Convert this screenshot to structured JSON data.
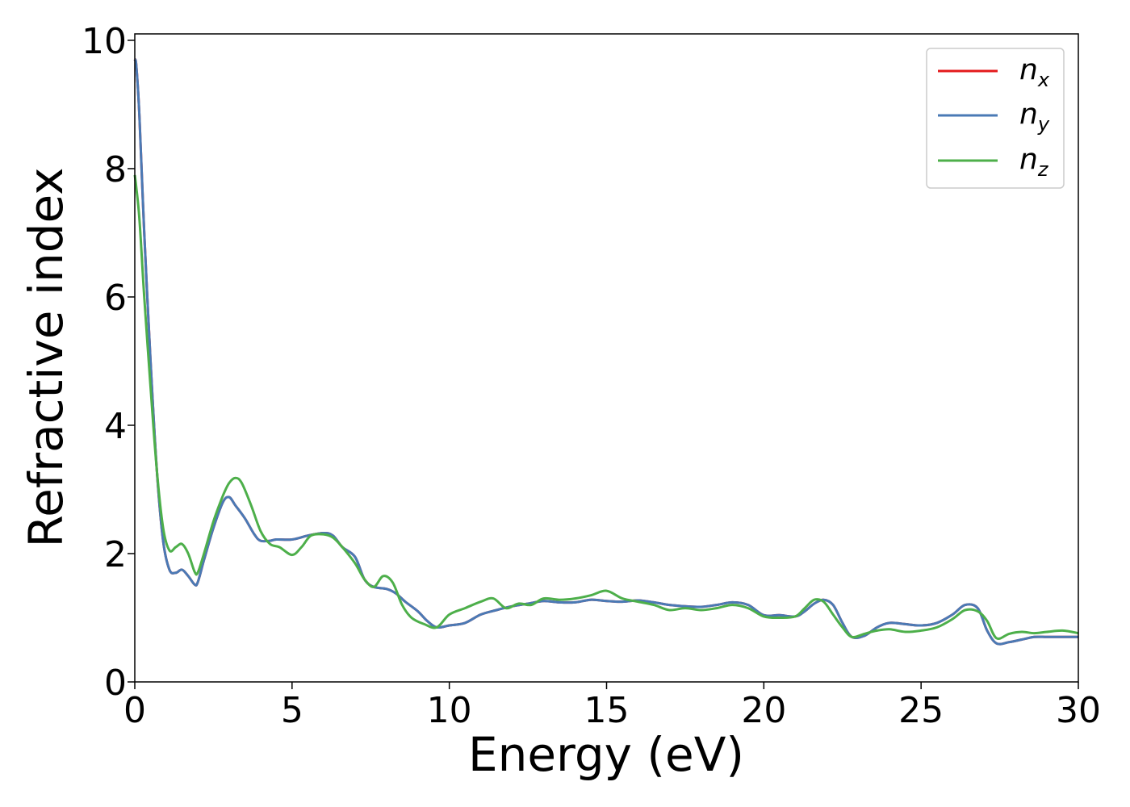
{
  "chart_data": {
    "type": "line",
    "title": "",
    "xlabel": "Energy (eV)",
    "ylabel": "Refractive index",
    "xlim": [
      0,
      30
    ],
    "ylim": [
      0,
      10.1
    ],
    "xticks": [
      "0",
      "5",
      "10",
      "15",
      "20",
      "25",
      "30"
    ],
    "yticks": [
      "0",
      "2",
      "4",
      "6",
      "8",
      "10"
    ],
    "grid": false,
    "legend_position": "top-right",
    "series": [
      {
        "name": "n",
        "sub": "x",
        "color": "#e41a1c",
        "x": [
          0,
          0.05,
          0.15,
          0.3,
          0.5,
          0.7,
          0.9,
          1.1,
          1.3,
          1.5,
          1.7,
          1.9,
          2.0,
          2.2,
          2.5,
          2.8,
          3.0,
          3.2,
          3.5,
          3.8,
          4.0,
          4.3,
          4.5,
          5.0,
          5.5,
          6.0,
          6.3,
          6.6,
          7.0,
          7.3,
          7.6,
          8.0,
          8.3,
          8.6,
          9.0,
          9.3,
          9.6,
          10.0,
          10.5,
          11.0,
          11.5,
          12.0,
          12.5,
          13.0,
          13.5,
          14.0,
          14.5,
          15.0,
          15.5,
          16.0,
          16.5,
          17.0,
          17.5,
          18.0,
          18.5,
          19.0,
          19.5,
          20.0,
          20.5,
          21.0,
          21.3,
          21.6,
          21.9,
          22.2,
          22.5,
          22.8,
          23.2,
          23.6,
          24.0,
          24.5,
          25.0,
          25.5,
          26.0,
          26.4,
          26.8,
          27.1,
          27.4,
          27.8,
          28.2,
          28.6,
          29.0,
          29.5,
          30.0
        ],
        "y": [
          9.7,
          9.6,
          8.8,
          7.0,
          5.0,
          3.3,
          2.2,
          1.75,
          1.7,
          1.75,
          1.65,
          1.52,
          1.55,
          1.9,
          2.4,
          2.8,
          2.88,
          2.75,
          2.55,
          2.3,
          2.2,
          2.2,
          2.22,
          2.22,
          2.28,
          2.32,
          2.28,
          2.1,
          1.95,
          1.6,
          1.48,
          1.45,
          1.38,
          1.25,
          1.1,
          0.95,
          0.85,
          0.88,
          0.92,
          1.05,
          1.12,
          1.18,
          1.22,
          1.26,
          1.24,
          1.24,
          1.28,
          1.26,
          1.25,
          1.27,
          1.24,
          1.2,
          1.18,
          1.17,
          1.2,
          1.24,
          1.2,
          1.04,
          1.04,
          1.02,
          1.1,
          1.22,
          1.28,
          1.2,
          0.92,
          0.7,
          0.72,
          0.85,
          0.92,
          0.9,
          0.88,
          0.92,
          1.05,
          1.2,
          1.15,
          0.8,
          0.6,
          0.62,
          0.66,
          0.7,
          0.7,
          0.7,
          0.7
        ]
      },
      {
        "name": "n",
        "sub": "y",
        "color": "#4a7ab5",
        "x": [
          0,
          0.05,
          0.15,
          0.3,
          0.5,
          0.7,
          0.9,
          1.1,
          1.3,
          1.5,
          1.7,
          1.9,
          2.0,
          2.2,
          2.5,
          2.8,
          3.0,
          3.2,
          3.5,
          3.8,
          4.0,
          4.3,
          4.5,
          5.0,
          5.5,
          6.0,
          6.3,
          6.6,
          7.0,
          7.3,
          7.6,
          8.0,
          8.3,
          8.6,
          9.0,
          9.3,
          9.6,
          10.0,
          10.5,
          11.0,
          11.5,
          12.0,
          12.5,
          13.0,
          13.5,
          14.0,
          14.5,
          15.0,
          15.5,
          16.0,
          16.5,
          17.0,
          17.5,
          18.0,
          18.5,
          19.0,
          19.5,
          20.0,
          20.5,
          21.0,
          21.3,
          21.6,
          21.9,
          22.2,
          22.5,
          22.8,
          23.2,
          23.6,
          24.0,
          24.5,
          25.0,
          25.5,
          26.0,
          26.4,
          26.8,
          27.1,
          27.4,
          27.8,
          28.2,
          28.6,
          29.0,
          29.5,
          30.0
        ],
        "y": [
          9.7,
          9.6,
          8.8,
          7.0,
          5.0,
          3.3,
          2.2,
          1.75,
          1.7,
          1.75,
          1.65,
          1.52,
          1.55,
          1.9,
          2.4,
          2.8,
          2.88,
          2.75,
          2.55,
          2.3,
          2.2,
          2.2,
          2.22,
          2.22,
          2.28,
          2.32,
          2.28,
          2.1,
          1.95,
          1.6,
          1.48,
          1.45,
          1.38,
          1.25,
          1.1,
          0.95,
          0.85,
          0.88,
          0.92,
          1.05,
          1.12,
          1.18,
          1.22,
          1.26,
          1.24,
          1.24,
          1.28,
          1.26,
          1.25,
          1.27,
          1.24,
          1.2,
          1.18,
          1.17,
          1.2,
          1.24,
          1.2,
          1.04,
          1.04,
          1.02,
          1.1,
          1.22,
          1.28,
          1.2,
          0.92,
          0.7,
          0.72,
          0.85,
          0.92,
          0.9,
          0.88,
          0.92,
          1.05,
          1.2,
          1.15,
          0.8,
          0.6,
          0.62,
          0.66,
          0.7,
          0.7,
          0.7,
          0.7
        ]
      },
      {
        "name": "n",
        "sub": "z",
        "color": "#4daf4a",
        "x": [
          0,
          0.05,
          0.15,
          0.3,
          0.5,
          0.7,
          0.9,
          1.1,
          1.3,
          1.5,
          1.7,
          1.9,
          2.0,
          2.2,
          2.5,
          2.8,
          3.0,
          3.2,
          3.4,
          3.7,
          4.0,
          4.3,
          4.6,
          5.0,
          5.3,
          5.6,
          6.0,
          6.3,
          6.6,
          7.0,
          7.3,
          7.6,
          7.9,
          8.2,
          8.5,
          8.8,
          9.2,
          9.6,
          10.0,
          10.5,
          11.0,
          11.4,
          11.8,
          12.2,
          12.6,
          13.0,
          13.5,
          14.0,
          14.5,
          15.0,
          15.5,
          16.0,
          16.5,
          17.0,
          17.5,
          18.0,
          18.5,
          19.0,
          19.5,
          20.0,
          20.5,
          21.0,
          21.3,
          21.6,
          21.9,
          22.2,
          22.5,
          22.8,
          23.2,
          23.6,
          24.0,
          24.5,
          25.0,
          25.5,
          26.0,
          26.4,
          26.8,
          27.1,
          27.4,
          27.8,
          28.2,
          28.6,
          29.0,
          29.5,
          30.0
        ],
        "y": [
          7.9,
          7.7,
          7.2,
          6.0,
          4.6,
          3.3,
          2.4,
          2.05,
          2.1,
          2.15,
          2.0,
          1.72,
          1.7,
          2.0,
          2.5,
          2.9,
          3.1,
          3.18,
          3.1,
          2.75,
          2.35,
          2.15,
          2.1,
          1.98,
          2.1,
          2.28,
          2.3,
          2.25,
          2.1,
          1.85,
          1.6,
          1.48,
          1.65,
          1.55,
          1.2,
          1.0,
          0.9,
          0.85,
          1.05,
          1.15,
          1.25,
          1.3,
          1.15,
          1.22,
          1.2,
          1.3,
          1.28,
          1.3,
          1.35,
          1.42,
          1.3,
          1.25,
          1.2,
          1.12,
          1.15,
          1.12,
          1.15,
          1.2,
          1.15,
          1.02,
          1.0,
          1.02,
          1.15,
          1.28,
          1.25,
          1.05,
          0.85,
          0.7,
          0.75,
          0.8,
          0.82,
          0.78,
          0.8,
          0.85,
          0.98,
          1.12,
          1.1,
          0.95,
          0.68,
          0.75,
          0.78,
          0.76,
          0.78,
          0.8,
          0.76
        ]
      }
    ]
  }
}
